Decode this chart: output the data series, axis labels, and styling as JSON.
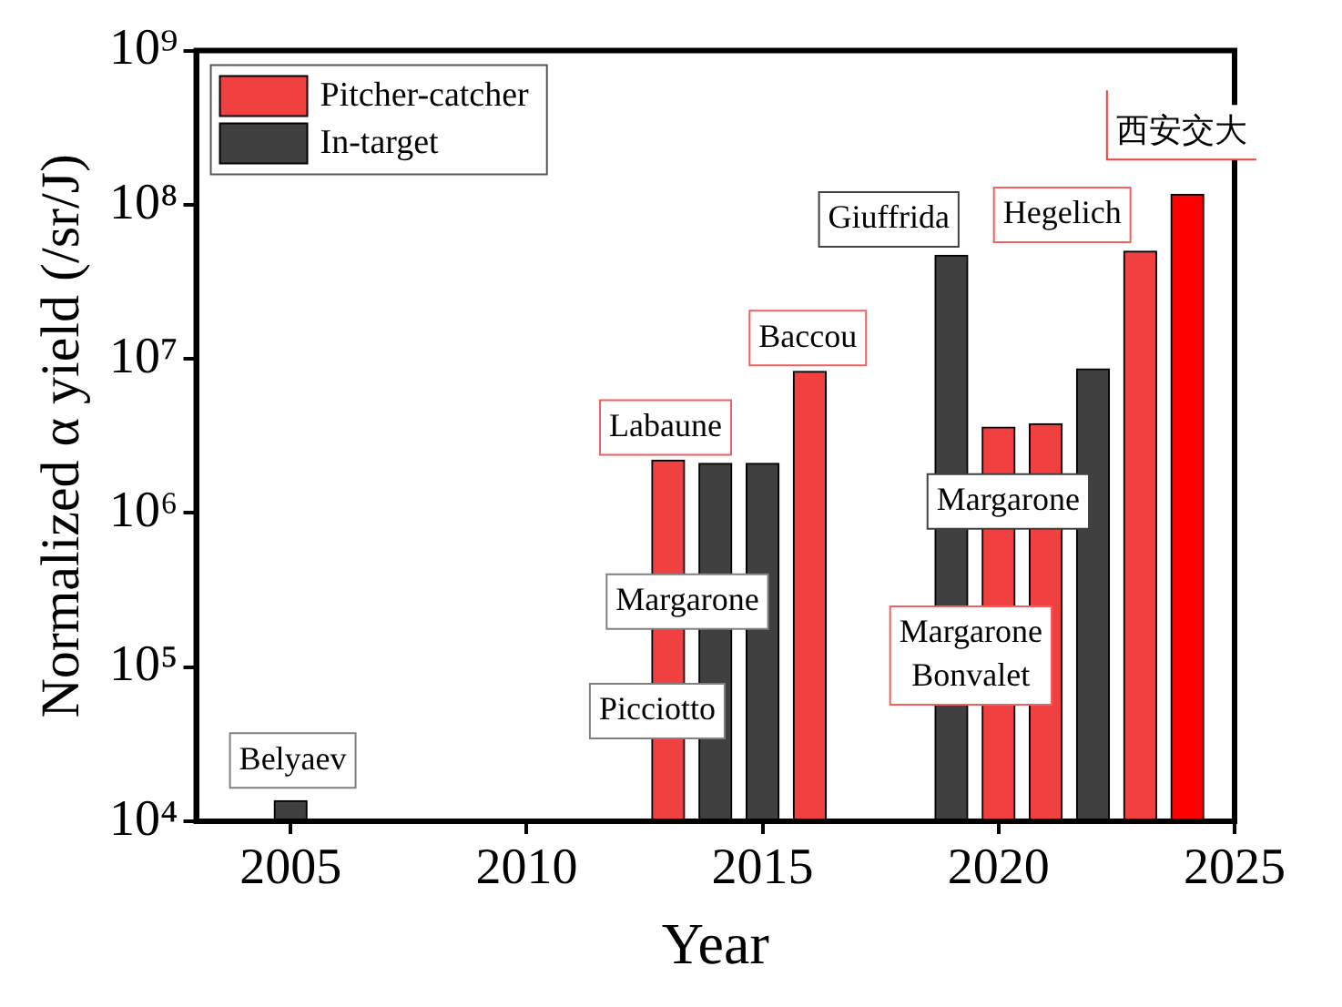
{
  "chart_data": {
    "type": "bar",
    "xlabel": "Year",
    "ylabel": "Normalized α yield (/sr/J)",
    "xlim": [
      2003,
      2025
    ],
    "xticks": [
      2005,
      2010,
      2015,
      2020,
      2025
    ],
    "ylim": [
      10000,
      1000000000
    ],
    "yticks": [
      {
        "value": 10000,
        "label": "10⁴"
      },
      {
        "value": 100000,
        "label": "10⁵"
      },
      {
        "value": 1000000,
        "label": "10⁶"
      },
      {
        "value": 10000000,
        "label": "10⁷"
      },
      {
        "value": 100000000,
        "label": "10⁸"
      },
      {
        "value": 1000000000,
        "label": "10⁹"
      }
    ],
    "log": "y",
    "grid": false,
    "legend": "top left",
    "series": [
      {
        "name": "Pitcher-catcher",
        "color": "#f04040",
        "x": [
          2013,
          2016,
          2020,
          2021,
          2023
        ],
        "values": [
          2200000,
          8300000,
          3600000,
          3800000,
          50000000
        ]
      },
      {
        "name": "In-target",
        "color": "#404040",
        "x": [
          2005,
          2014,
          2015,
          2019,
          2022
        ],
        "values": [
          13600,
          2100000,
          2100000,
          47000000,
          8600000
        ]
      },
      {
        "color": "#ff0000",
        "x": [
          2024
        ],
        "values": [
          117000000
        ]
      }
    ],
    "annotations": [
      "Belyaev",
      "Labaune",
      "Margarone",
      "Picciotto",
      "Baccou",
      "Giuffrida",
      "Margarone",
      "Margarone\nBonvalet",
      "Hegelich",
      "西安交大"
    ]
  }
}
